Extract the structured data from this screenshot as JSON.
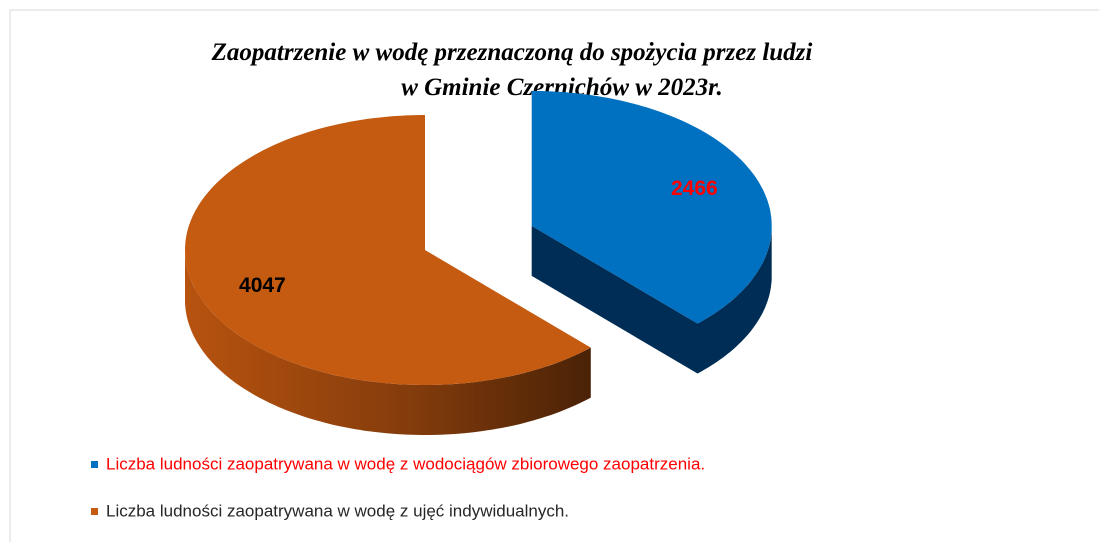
{
  "chart_data": {
    "type": "pie3d",
    "title": [
      "Zaopatrzenie w wodę przeznaczoną do spożycia przez ludzi",
      "w Gminie Czernichów w 2023r."
    ],
    "categories": [
      "Liczba ludności zaopatrywana w wodę z wodociągów zbiorowego zaopatrzenia.",
      "Liczba ludności zaopatrywana w wodę z ujęć indywidualnych."
    ],
    "values": [
      2466,
      4047
    ],
    "colors": [
      "#0070c0",
      "#c55a11"
    ],
    "label_colors": [
      "#ff0000",
      "#000000"
    ],
    "exploded": [
      true,
      false
    ]
  }
}
